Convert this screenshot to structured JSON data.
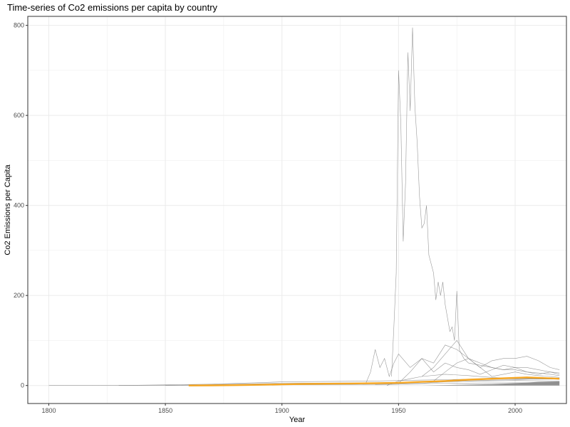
{
  "chart_data": {
    "type": "line",
    "title": "Time-series of Co2 emissions per capita by country",
    "xlabel": "Year",
    "ylabel": "Co2 Emissions per Capita",
    "xlim": [
      1791,
      2022
    ],
    "ylim": [
      -40,
      820
    ],
    "x_ticks": [
      1800,
      1850,
      1900,
      1950,
      2000
    ],
    "y_ticks": [
      0,
      200,
      400,
      600,
      800
    ],
    "grid": true,
    "colors": {
      "background_series": "#7f7f7f",
      "highlight_series": "#f5a623",
      "grid": "#ebebeb",
      "panel_border": "#333333"
    },
    "series": [
      {
        "role": "background",
        "x": [
          1800,
          1850,
          1900,
          1930,
          1950,
          1970,
          2000,
          2019
        ],
        "values": [
          0,
          0.5,
          1.5,
          2,
          3,
          5,
          6,
          6
        ]
      },
      {
        "role": "background",
        "x": [
          1830,
          1870,
          1900,
          1940,
          1960,
          1990,
          2019
        ],
        "values": [
          0,
          3,
          8,
          10,
          12,
          15,
          14
        ]
      },
      {
        "role": "background",
        "x": [
          1850,
          1900,
          1940,
          1970,
          2000,
          2019
        ],
        "values": [
          0,
          5,
          6,
          9,
          11,
          10
        ]
      },
      {
        "role": "background",
        "x": [
          1945,
          1950,
          1955,
          1960,
          1970,
          1980,
          1990,
          2000,
          2010,
          2019
        ],
        "values": [
          0,
          10,
          15,
          20,
          25,
          22,
          18,
          15,
          16,
          14
        ]
      },
      {
        "role": "background",
        "x": [
          1940,
          1950,
          1960,
          1970,
          1980,
          1990,
          2000,
          2010,
          2019
        ],
        "values": [
          2,
          3,
          5,
          8,
          10,
          12,
          13,
          15,
          14
        ]
      },
      {
        "role": "background",
        "x": [
          1936,
          1938,
          1940,
          1942,
          1944,
          1946,
          1948,
          1950,
          1955,
          1960,
          1965,
          1970,
          1975,
          1980,
          1985,
          1990,
          1995,
          2000,
          2005,
          2010,
          2015,
          2019
        ],
        "values": [
          5,
          30,
          80,
          40,
          60,
          20,
          50,
          70,
          40,
          60,
          30,
          50,
          40,
          35,
          25,
          35,
          45,
          40,
          40,
          35,
          30,
          25
        ]
      },
      {
        "role": "background",
        "x": [
          1950,
          1955,
          1960,
          1965,
          1970,
          1975,
          1980,
          1985,
          1990,
          1995,
          2000,
          2005,
          2010,
          2015,
          2019
        ],
        "values": [
          5,
          30,
          60,
          50,
          90,
          80,
          60,
          40,
          55,
          60,
          60,
          65,
          55,
          40,
          35
        ]
      },
      {
        "role": "background",
        "x": [
          1960,
          1965,
          1970,
          1975,
          1980,
          1985,
          1990,
          1995,
          2000,
          2005,
          2010,
          2015,
          2019
        ],
        "values": [
          20,
          40,
          70,
          100,
          60,
          50,
          40,
          35,
          40,
          30,
          25,
          30,
          28
        ]
      },
      {
        "role": "background",
        "x": [
          1965,
          1970,
          1975,
          1980,
          1985,
          1990,
          1995,
          2000,
          2005,
          2010,
          2015,
          2019
        ],
        "values": [
          10,
          30,
          50,
          60,
          40,
          20,
          25,
          30,
          25,
          22,
          20,
          18
        ]
      },
      {
        "role": "background",
        "x": [
          1947,
          1948,
          1949,
          1950,
          1951,
          1952,
          1953,
          1954,
          1955,
          1956,
          1957,
          1958,
          1959,
          1960,
          1961,
          1962,
          1963,
          1964,
          1965,
          1966,
          1967,
          1968,
          1969,
          1970,
          1971,
          1972,
          1973,
          1974,
          1975,
          1976,
          1977,
          1978,
          1979,
          1980,
          1985,
          1990,
          1995,
          2000,
          2005,
          2010,
          2015,
          2019
        ],
        "values": [
          20,
          130,
          250,
          700,
          580,
          320,
          450,
          740,
          610,
          795,
          620,
          540,
          420,
          350,
          360,
          400,
          290,
          270,
          250,
          190,
          230,
          200,
          230,
          180,
          150,
          120,
          130,
          100,
          210,
          80,
          70,
          60,
          55,
          50,
          45,
          40,
          35,
          35,
          30,
          28,
          25,
          22
        ]
      },
      {
        "role": "highlight",
        "x": [
          1860,
          1870,
          1880,
          1890,
          1900,
          1910,
          1920,
          1930,
          1940,
          1950,
          1960,
          1970,
          1980,
          1990,
          2000,
          2005,
          2010,
          2015,
          2019
        ],
        "values": [
          0,
          0.3,
          0.8,
          1.5,
          2.5,
          3.5,
          4,
          4.5,
          5,
          6,
          8,
          10,
          13,
          15,
          17,
          18,
          17,
          16,
          15
        ]
      }
    ]
  }
}
